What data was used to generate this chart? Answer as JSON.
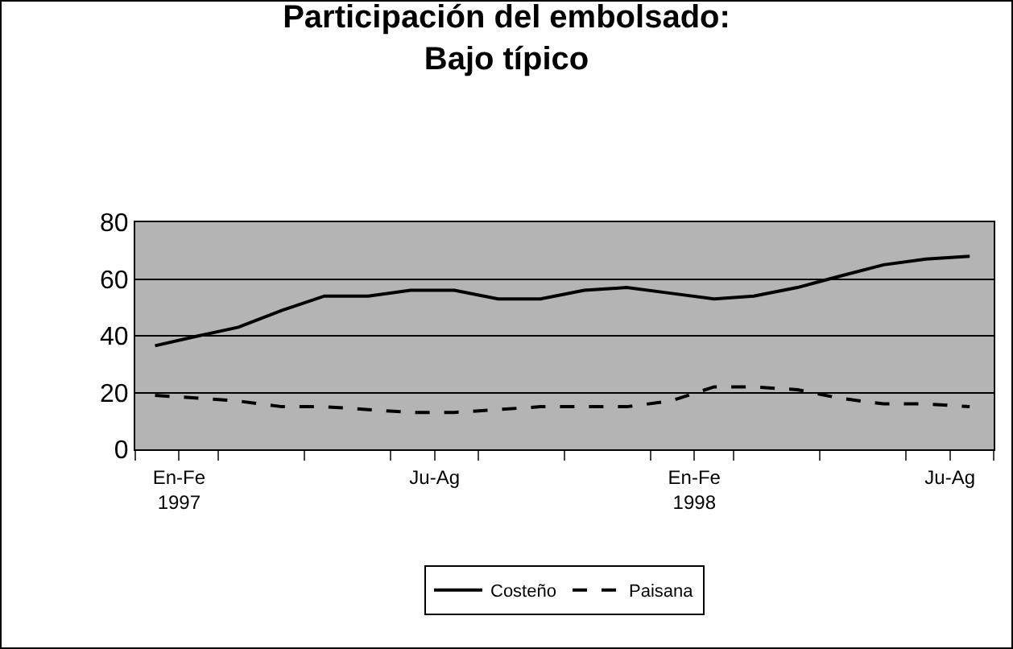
{
  "chart_data": {
    "type": "line",
    "title": "Participación del embolsado:\nBajo típico",
    "x": [
      "1997-01-15",
      "1997-02-15",
      "1997-03-15",
      "1997-04-15",
      "1997-05-15",
      "1997-06-15",
      "1997-07-15",
      "1997-08-15",
      "1997-09-15",
      "1997-10-15",
      "1997-11-15",
      "1997-12-15",
      "1998-01-15",
      "1998-02-15",
      "1998-03-15",
      "1998-04-15",
      "1998-05-15",
      "1998-06-15",
      "1998-07-15",
      "1998-08-15"
    ],
    "series": [
      {
        "name": "Costeño",
        "color": "#000000",
        "line_style": "solid",
        "values": [
          36.5,
          40,
          43,
          49,
          54,
          54,
          56,
          56,
          53,
          53,
          56,
          57,
          55,
          53,
          54,
          57,
          61,
          65,
          67,
          68
        ]
      },
      {
        "name": "Paisana",
        "color": "#000000",
        "line_style": "dashed",
        "values": [
          19,
          18,
          17,
          15,
          15,
          14,
          13,
          13,
          14,
          15,
          15,
          15,
          17,
          22,
          22,
          21,
          18,
          16,
          16,
          15
        ]
      }
    ],
    "xlim": [
      "1997-01-01",
      "1998-09-01"
    ],
    "xticks": [
      {
        "value": "1997-01-01",
        "label": null
      },
      {
        "value": "1997-02-01",
        "label": "En-Fe\n1997"
      },
      {
        "value": "1997-03-01",
        "label": null
      },
      {
        "value": "1997-05-01",
        "label": null
      },
      {
        "value": "1997-07-01",
        "label": null
      },
      {
        "value": "1997-08-01",
        "label": "Ju-Ag"
      },
      {
        "value": "1997-09-01",
        "label": null
      },
      {
        "value": "1997-11-01",
        "label": null
      },
      {
        "value": "1998-01-01",
        "label": null
      },
      {
        "value": "1998-02-01",
        "label": "En-Fe\n1998"
      },
      {
        "value": "1998-03-01",
        "label": null
      },
      {
        "value": "1998-05-01",
        "label": null
      },
      {
        "value": "1998-07-01",
        "label": null
      },
      {
        "value": "1998-08-01",
        "label": "Ju-Ag"
      },
      {
        "value": "1998-09-01",
        "label": null
      }
    ],
    "ylim": [
      0,
      80
    ],
    "yticks": [
      0,
      20,
      40,
      60,
      80
    ],
    "grid": "y",
    "legend": "bottom",
    "marker": "none"
  }
}
